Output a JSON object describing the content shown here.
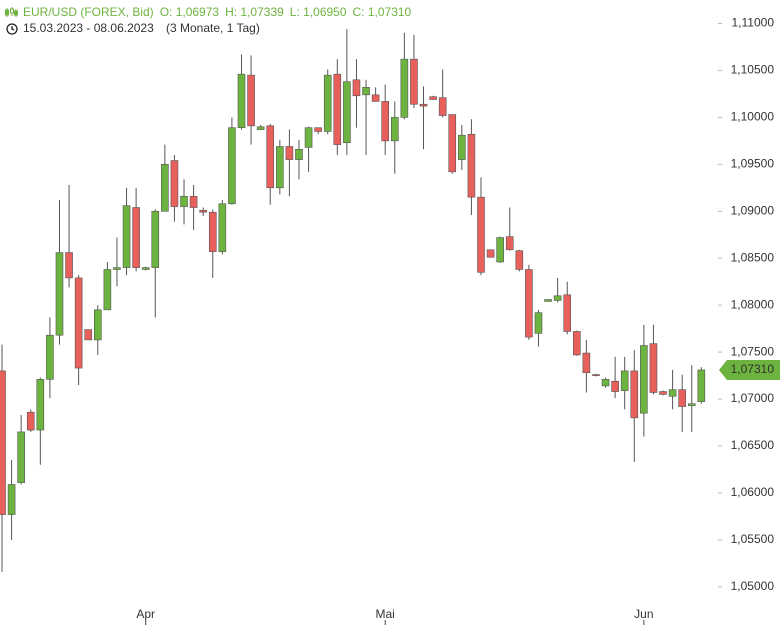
{
  "chart_data": {
    "type": "candlestick",
    "title": "EUR/USD (FOREX, Bid)",
    "header_values": [
      "O: 1,06973",
      "H: 1,07339",
      "L: 1,06950",
      "C: 1,07310"
    ],
    "date_range": "15.03.2023 - 08.06.2023",
    "period": "(3 Monate, 1 Tag)",
    "last_value_label": "1,07310",
    "up_color": "#6db33f",
    "down_color": "#e8605c",
    "wick_color": "#555555",
    "categories": [
      null,
      null,
      null,
      null,
      null,
      null,
      null,
      null,
      null,
      null,
      null,
      null,
      null,
      null,
      null,
      "Apr",
      null,
      null,
      null,
      null,
      null,
      null,
      null,
      null,
      null,
      null,
      null,
      null,
      null,
      null,
      null,
      null,
      null,
      null,
      null,
      null,
      null,
      null,
      null,
      null,
      "Mai",
      null,
      null,
      null,
      null,
      null,
      null,
      null,
      null,
      null,
      null,
      null,
      null,
      null,
      null,
      null,
      null,
      null,
      null,
      null,
      null,
      null,
      null,
      null,
      null,
      null,
      null,
      "Jun",
      null,
      null,
      null,
      null,
      null,
      null
    ],
    "ylim": [
      1.0486,
      1.1125
    ],
    "yticks": [
      {
        "value": 1.05,
        "label": "1,05000"
      },
      {
        "value": 1.055,
        "label": "1,05500"
      },
      {
        "value": 1.06,
        "label": "1,06000"
      },
      {
        "value": 1.065,
        "label": "1,06500"
      },
      {
        "value": 1.07,
        "label": "1,07000"
      },
      {
        "value": 1.075,
        "label": "1,07500"
      },
      {
        "value": 1.08,
        "label": "1,08000"
      },
      {
        "value": 1.085,
        "label": "1,08500"
      },
      {
        "value": 1.09,
        "label": "1,09000"
      },
      {
        "value": 1.095,
        "label": "1,09500"
      },
      {
        "value": 1.1,
        "label": "1,10000"
      },
      {
        "value": 1.105,
        "label": "1,10500"
      },
      {
        "value": 1.11,
        "label": "1,11000"
      }
    ],
    "open": [
      1.073,
      1.0577,
      1.0611,
      1.0686,
      1.0667,
      1.0721,
      1.0768,
      1.0856,
      1.0829,
      1.0774,
      1.0763,
      1.0795,
      1.0838,
      1.084,
      1.0904,
      1.0838,
      1.084,
      1.09,
      1.0954,
      1.0905,
      1.0916,
      1.0901,
      1.0899,
      1.0857,
      1.0908,
      1.0989,
      1.1045,
      1.0987,
      1.0991,
      1.0925,
      1.0969,
      1.0955,
      1.0968,
      1.0989,
      1.0985,
      1.1046,
      1.0973,
      1.104,
      1.1024,
      1.1024,
      1.1017,
      1.0975,
      1.1,
      1.1062,
      1.1014,
      1.1022,
      1.1021,
      1.1003,
      1.0955,
      1.0982,
      1.0915,
      1.0859,
      1.0846,
      1.0873,
      1.0858,
      1.0838,
      1.077,
      1.0804,
      1.0805,
      1.0811,
      1.0772,
      1.0749,
      1.0726,
      1.0714,
      1.0719,
      1.0709,
      1.073,
      1.0685,
      1.0759,
      1.0708,
      1.0703,
      1.071,
      1.0693,
      1.06973
    ],
    "high": [
      1.0758,
      1.0635,
      1.0683,
      1.0689,
      1.0723,
      1.0787,
      1.0912,
      1.0928,
      1.0832,
      1.0774,
      1.08,
      1.0846,
      1.0872,
      1.0925,
      1.0925,
      1.0841,
      1.0902,
      1.0971,
      1.096,
      1.0934,
      1.0928,
      1.0904,
      1.0902,
      1.0912,
      1.1,
      1.1067,
      1.1066,
      1.0992,
      1.0993,
      1.0976,
      1.0987,
      1.0976,
      1.099,
      1.0989,
      1.1051,
      1.1062,
      1.1094,
      1.1062,
      1.104,
      1.1032,
      1.1035,
      1.1017,
      1.109,
      1.1088,
      1.1033,
      1.1023,
      1.1051,
      1.1003,
      1.0992,
      1.0998,
      1.0936,
      1.0859,
      1.0873,
      1.0904,
      1.0859,
      1.0843,
      1.0795,
      1.0806,
      1.0829,
      1.0825,
      1.0773,
      1.0763,
      1.0727,
      1.0723,
      1.0745,
      1.0745,
      1.0752,
      1.0779,
      1.0779,
      1.0709,
      1.0731,
      1.0726,
      1.0736,
      1.07339
    ],
    "low": [
      1.0516,
      1.055,
      1.0609,
      1.0665,
      1.063,
      1.0701,
      1.0758,
      1.0819,
      1.0715,
      1.0763,
      1.0747,
      1.0795,
      1.082,
      1.0832,
      1.0836,
      1.0837,
      1.0787,
      1.09,
      1.0889,
      1.0886,
      1.088,
      1.0895,
      1.0829,
      1.0854,
      1.0907,
      1.0987,
      1.0971,
      1.0987,
      1.0907,
      1.0918,
      1.0916,
      1.0934,
      1.0942,
      1.0982,
      1.0982,
      1.096,
      1.096,
      1.0989,
      1.096,
      1.1017,
      1.096,
      1.094,
      1.0998,
      1.101,
      1.0966,
      1.1019,
      1.1,
      1.094,
      1.0944,
      1.0896,
      1.0832,
      1.0851,
      1.0845,
      1.0858,
      1.0836,
      1.0763,
      1.0756,
      1.0804,
      1.0803,
      1.0769,
      1.0746,
      1.0707,
      1.0724,
      1.0712,
      1.0701,
      1.0689,
      1.0633,
      1.066,
      1.0705,
      1.0704,
      1.0689,
      1.0665,
      1.0665,
      1.0695
    ],
    "close": [
      1.0577,
      1.0609,
      1.0665,
      1.0667,
      1.0721,
      1.0768,
      1.0856,
      1.0829,
      1.0733,
      1.0763,
      1.0795,
      1.0838,
      1.084,
      1.0906,
      1.084,
      1.084,
      1.09,
      1.095,
      1.0905,
      1.0916,
      1.0904,
      1.0899,
      1.0857,
      1.0908,
      1.0989,
      1.1046,
      1.0991,
      1.099,
      1.0925,
      1.0969,
      1.0955,
      1.0966,
      1.0989,
      1.0985,
      1.1045,
      1.0971,
      1.1038,
      1.1023,
      1.1032,
      1.1017,
      1.0975,
      1.1,
      1.1062,
      1.1014,
      1.1012,
      1.1019,
      1.1002,
      1.0942,
      1.0981,
      1.0915,
      1.0835,
      1.0851,
      1.0872,
      1.0859,
      1.0838,
      1.0766,
      1.0792,
      1.0806,
      1.081,
      1.0772,
      1.0747,
      1.0728,
      1.0725,
      1.0721,
      1.0708,
      1.073,
      1.068,
      1.0757,
      1.0707,
      1.0705,
      1.071,
      1.0692,
      1.0695,
      1.0731
    ]
  }
}
